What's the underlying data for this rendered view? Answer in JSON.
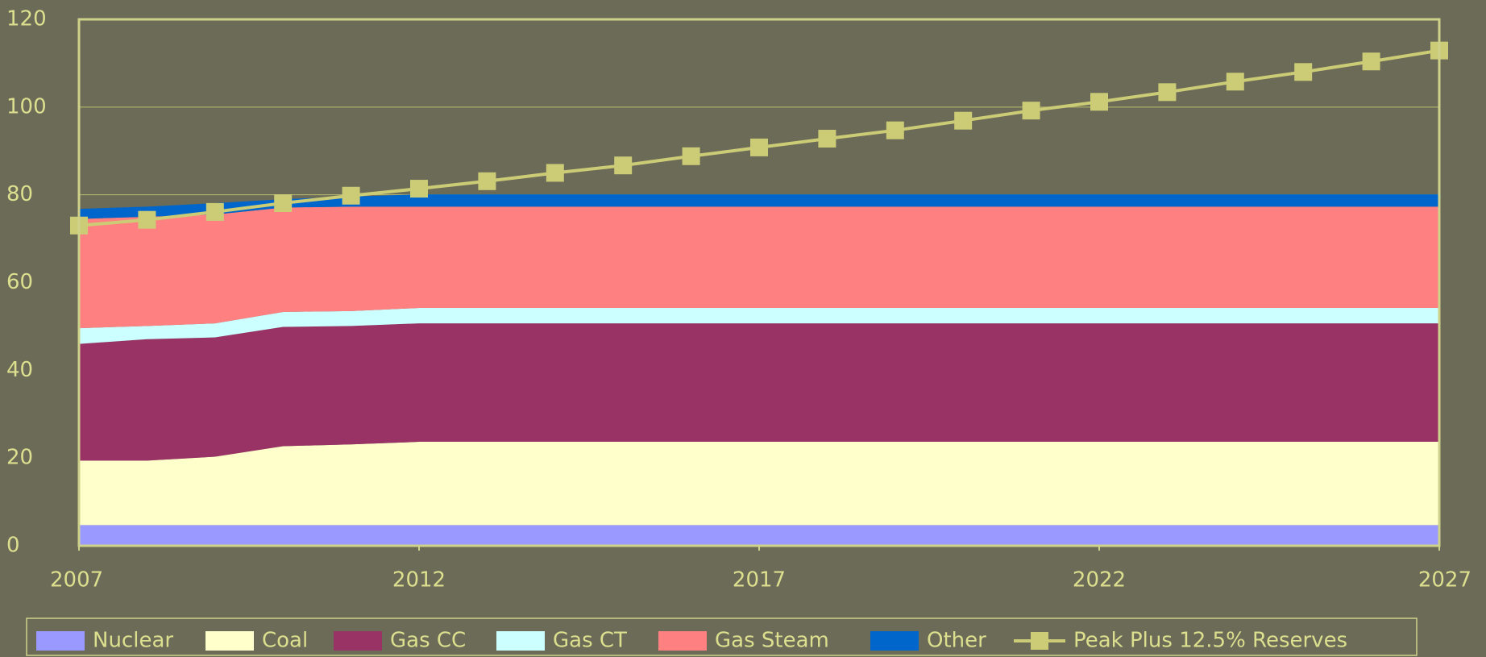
{
  "chart_data": {
    "type": "stacked-area-line",
    "x": [
      2007,
      2008,
      2009,
      2010,
      2011,
      2012,
      2013,
      2014,
      2015,
      2016,
      2017,
      2018,
      2019,
      2020,
      2021,
      2022,
      2023,
      2024,
      2025,
      2026,
      2027
    ],
    "xlim": [
      2007,
      2027
    ],
    "xticks": [
      2007,
      2012,
      2017,
      2022,
      2027
    ],
    "ylim": [
      0,
      120
    ],
    "yticks": [
      0,
      20,
      40,
      60,
      80,
      100,
      120
    ],
    "grid": true,
    "legend": "bottom",
    "series": [
      {
        "name": "Nuclear",
        "color": "#9999ff",
        "values": [
          4.7,
          4.7,
          4.7,
          4.7,
          4.7,
          4.7,
          4.7,
          4.7,
          4.7,
          4.7,
          4.7,
          4.7,
          4.7,
          4.7,
          4.7,
          4.7,
          4.7,
          4.7,
          4.7,
          4.7,
          4.7
        ]
      },
      {
        "name": "Coal",
        "color": "#ffffcc",
        "values": [
          14.7,
          14.7,
          15.6,
          18.0,
          18.4,
          19.0,
          19.0,
          19.0,
          19.0,
          19.0,
          19.0,
          19.0,
          19.0,
          19.0,
          19.0,
          19.0,
          19.0,
          19.0,
          19.0,
          19.0,
          19.0
        ]
      },
      {
        "name": "Gas CC",
        "color": "#993366",
        "values": [
          26.6,
          27.7,
          27.2,
          27.2,
          27.0,
          27.0,
          27.0,
          27.0,
          27.0,
          27.0,
          27.0,
          27.0,
          27.0,
          27.0,
          27.0,
          27.0,
          27.0,
          27.0,
          27.0,
          27.0,
          27.0
        ]
      },
      {
        "name": "Gas CT",
        "color": "#ccffff",
        "values": [
          3.6,
          3.0,
          3.2,
          3.4,
          3.4,
          3.5,
          3.5,
          3.5,
          3.5,
          3.5,
          3.5,
          3.5,
          3.5,
          3.5,
          3.5,
          3.5,
          3.5,
          3.5,
          3.5,
          3.5,
          3.5
        ]
      },
      {
        "name": "Gas Steam",
        "color": "#ff8080",
        "values": [
          24.9,
          24.9,
          24.8,
          23.8,
          23.8,
          23.1,
          23.1,
          23.1,
          23.1,
          23.1,
          23.1,
          23.1,
          23.1,
          23.1,
          23.1,
          23.1,
          23.1,
          23.1,
          23.1,
          23.1,
          23.1
        ]
      },
      {
        "name": "Other",
        "color": "#0066cc",
        "values": [
          2.3,
          2.3,
          2.6,
          1.9,
          2.3,
          2.8,
          2.8,
          2.8,
          2.8,
          2.8,
          2.8,
          2.8,
          2.8,
          2.8,
          2.8,
          2.8,
          2.8,
          2.8,
          2.8,
          2.8,
          2.8
        ]
      },
      {
        "name": "Peak Plus 12.5% Reserves",
        "color": "#cccc77",
        "kind": "line",
        "values": [
          73.0,
          74.3,
          76.1,
          78.1,
          79.8,
          81.4,
          83.1,
          85.0,
          86.7,
          88.8,
          90.8,
          92.8,
          94.7,
          96.9,
          99.2,
          101.2,
          103.4,
          105.8,
          108.0,
          110.4,
          112.9
        ]
      }
    ]
  }
}
